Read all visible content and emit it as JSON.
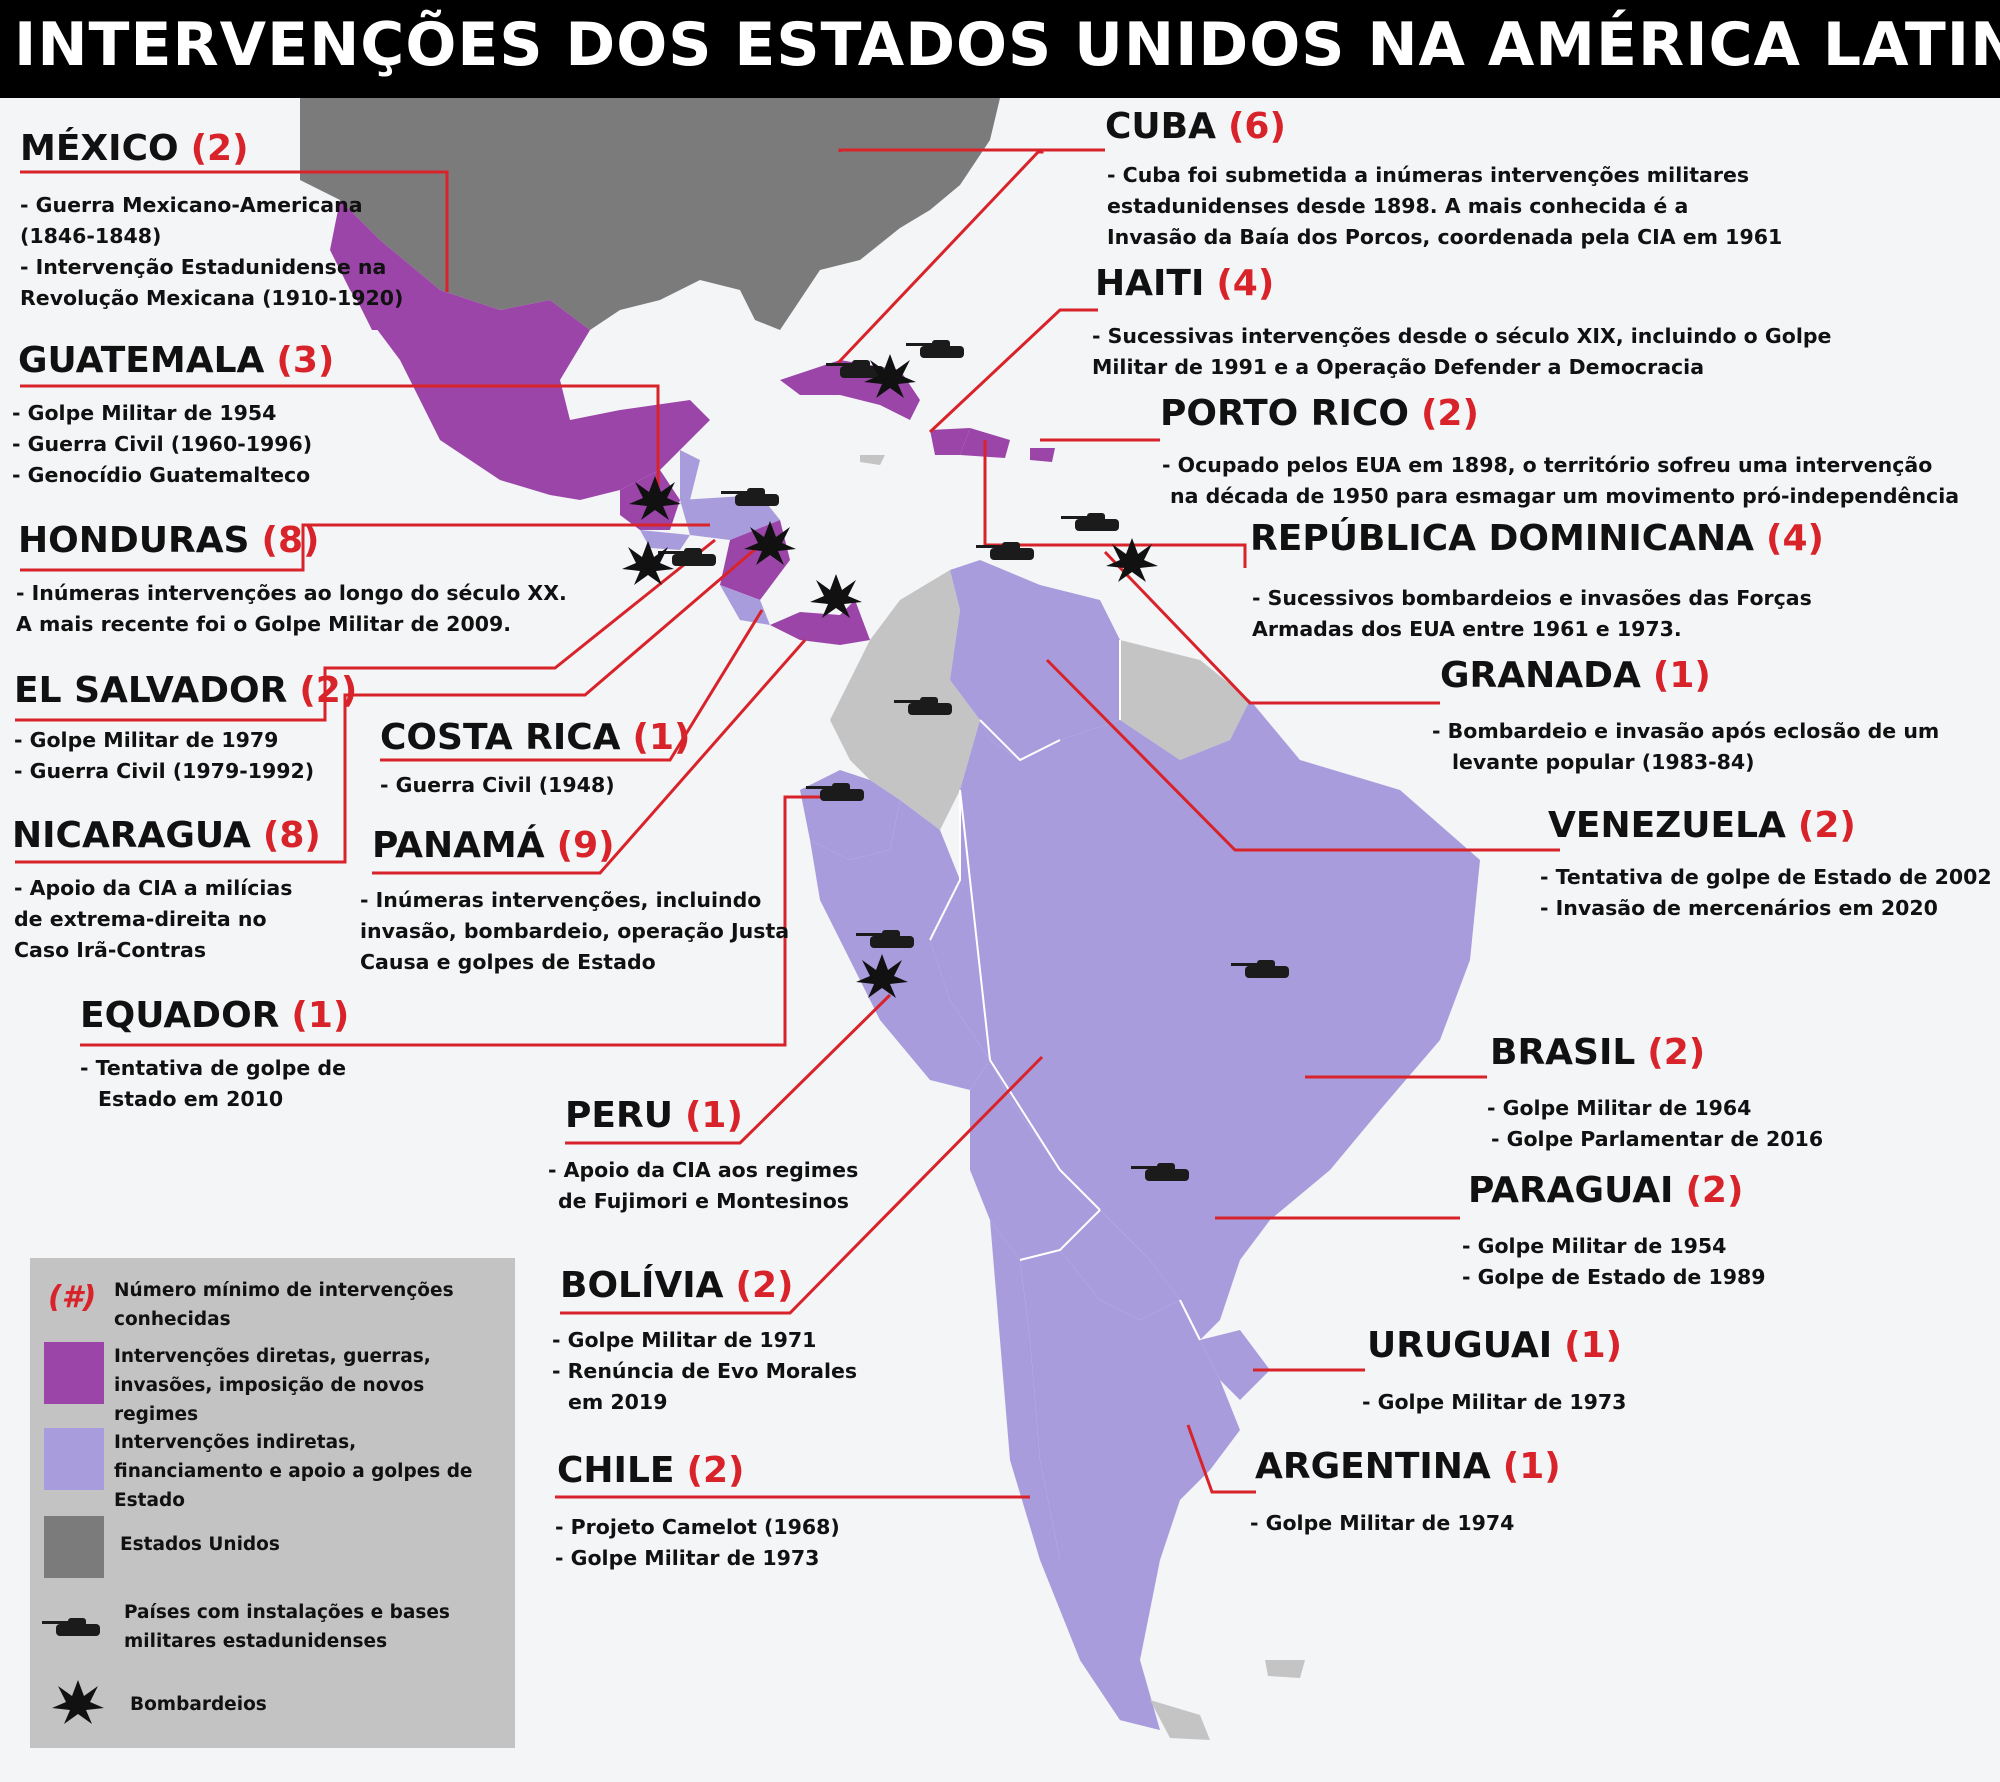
{
  "title": "INTERVENÇÕES DOS ESTADOS UNIDOS NA AMÉRICA LATINA",
  "colors": {
    "direct": "#9b45a9",
    "indirect": "#a99cdc",
    "usa": "#7b7b7b",
    "other": "#c4c4c4",
    "line": "#d8232a",
    "count": "#d8232a"
  },
  "countries": [
    {
      "key": "mexico",
      "name": "MÉXICO",
      "count": "(2)",
      "desc": [
        "- Guerra Mexicano-Americana",
        "(1846-1848)",
        "- Intervenção Estadunidense na",
        "Revolução Mexicana (1910-1920)"
      ]
    },
    {
      "key": "guatemala",
      "name": "GUATEMALA",
      "count": "(3)",
      "desc": [
        "- Golpe Militar de 1954",
        "- Guerra Civil (1960-1996)",
        "- Genocídio Guatemalteco"
      ]
    },
    {
      "key": "honduras",
      "name": "HONDURAS",
      "count": "(8)",
      "desc": [
        "- Inúmeras intervenções ao longo do século XX.",
        "A mais recente foi o Golpe Militar de 2009."
      ]
    },
    {
      "key": "elsalvador",
      "name": "EL SALVADOR",
      "count": "(2)",
      "desc": [
        "- Golpe Militar de 1979",
        "- Guerra Civil (1979-1992)"
      ]
    },
    {
      "key": "costarica",
      "name": "COSTA RICA",
      "count": "(1)",
      "desc": [
        "- Guerra Civil (1948)"
      ]
    },
    {
      "key": "nicaragua",
      "name": "NICARAGUA",
      "count": "(8)",
      "desc": [
        "- Apoio da CIA a milícias",
        "de extrema-direita no",
        "Caso Irã-Contras"
      ]
    },
    {
      "key": "panama",
      "name": "PANAMÁ",
      "count": "(9)",
      "desc": [
        "- Inúmeras intervenções, incluindo",
        "invasão, bombardeio, operação Justa",
        "Causa e golpes de Estado"
      ]
    },
    {
      "key": "equador",
      "name": "EQUADOR",
      "count": "(1)",
      "desc": [
        "- Tentativa de golpe de",
        "Estado em 2010"
      ]
    },
    {
      "key": "peru",
      "name": "PERU",
      "count": "(1)",
      "desc": [
        "- Apoio da CIA aos regimes",
        "de Fujimori e Montesinos"
      ]
    },
    {
      "key": "bolivia",
      "name": "BOLÍVIA",
      "count": "(2)",
      "desc": [
        "- Golpe Militar de 1971",
        "- Renúncia de Evo Morales",
        "em 2019"
      ]
    },
    {
      "key": "chile",
      "name": "CHILE",
      "count": "(2)",
      "desc": [
        "- Projeto Camelot (1968)",
        "- Golpe Militar de 1973"
      ]
    },
    {
      "key": "cuba",
      "name": "CUBA",
      "count": "(6)",
      "desc": [
        "- Cuba foi submetida a inúmeras intervenções militares",
        "estadunidenses desde 1898. A mais conhecida é a",
        "Invasão da Baía dos Porcos, coordenada pela CIA em 1961"
      ]
    },
    {
      "key": "haiti",
      "name": "HAITI",
      "count": "(4)",
      "desc": [
        "- Sucessivas intervenções desde o século XIX, incluindo o Golpe",
        "Militar de 1991 e a Operação Defender a Democracia"
      ]
    },
    {
      "key": "portorico",
      "name": "PORTO RICO",
      "count": "(2)",
      "desc": [
        "- Ocupado pelos EUA em 1898, o território sofreu uma intervenção",
        "na década de 1950 para esmagar um movimento pró-independência"
      ]
    },
    {
      "key": "repdominicana",
      "name": "REPÚBLICA DOMINICANA",
      "count": "(4)",
      "desc": [
        "- Sucessivos bombardeios e invasões das Forças",
        "Armadas dos EUA entre 1961 e 1973."
      ]
    },
    {
      "key": "granada",
      "name": "GRANADA",
      "count": "(1)",
      "desc": [
        "- Bombardeio e invasão após eclosão de um",
        "levante popular (1983-84)"
      ]
    },
    {
      "key": "venezuela",
      "name": "VENEZUELA",
      "count": "(2)",
      "desc": [
        "- Tentativa de golpe de Estado de 2002",
        "- Invasão de mercenários em 2020"
      ]
    },
    {
      "key": "brasil",
      "name": "BRASIL",
      "count": "(2)",
      "desc": [
        "- Golpe Militar de 1964",
        "- Golpe Parlamentar de 2016"
      ]
    },
    {
      "key": "paraguai",
      "name": "PARAGUAI",
      "count": "(2)",
      "desc": [
        "- Golpe Militar de 1954",
        "- Golpe de Estado de 1989"
      ]
    },
    {
      "key": "uruguai",
      "name": "URUGUAI",
      "count": "(1)",
      "desc": [
        "- Golpe Militar de 1973"
      ]
    },
    {
      "key": "argentina",
      "name": "ARGENTINA",
      "count": "(1)",
      "desc": [
        "- Golpe Militar de 1974"
      ]
    }
  ],
  "legend": {
    "symbol": "(#)",
    "items": [
      {
        "label": "Número mínimo de intervenções conhecidas"
      },
      {
        "label": "Intervenções diretas, guerras, invasões, imposição de novos regimes"
      },
      {
        "label": "Intervenções indiretas, financiamento e apoio a golpes de Estado"
      },
      {
        "label": "Estados Unidos"
      },
      {
        "label": "Países com instalações e bases militares estadunidenses",
        "icon": "tank-icon"
      },
      {
        "label": "Bombardeios",
        "icon": "explosion-icon"
      }
    ]
  }
}
